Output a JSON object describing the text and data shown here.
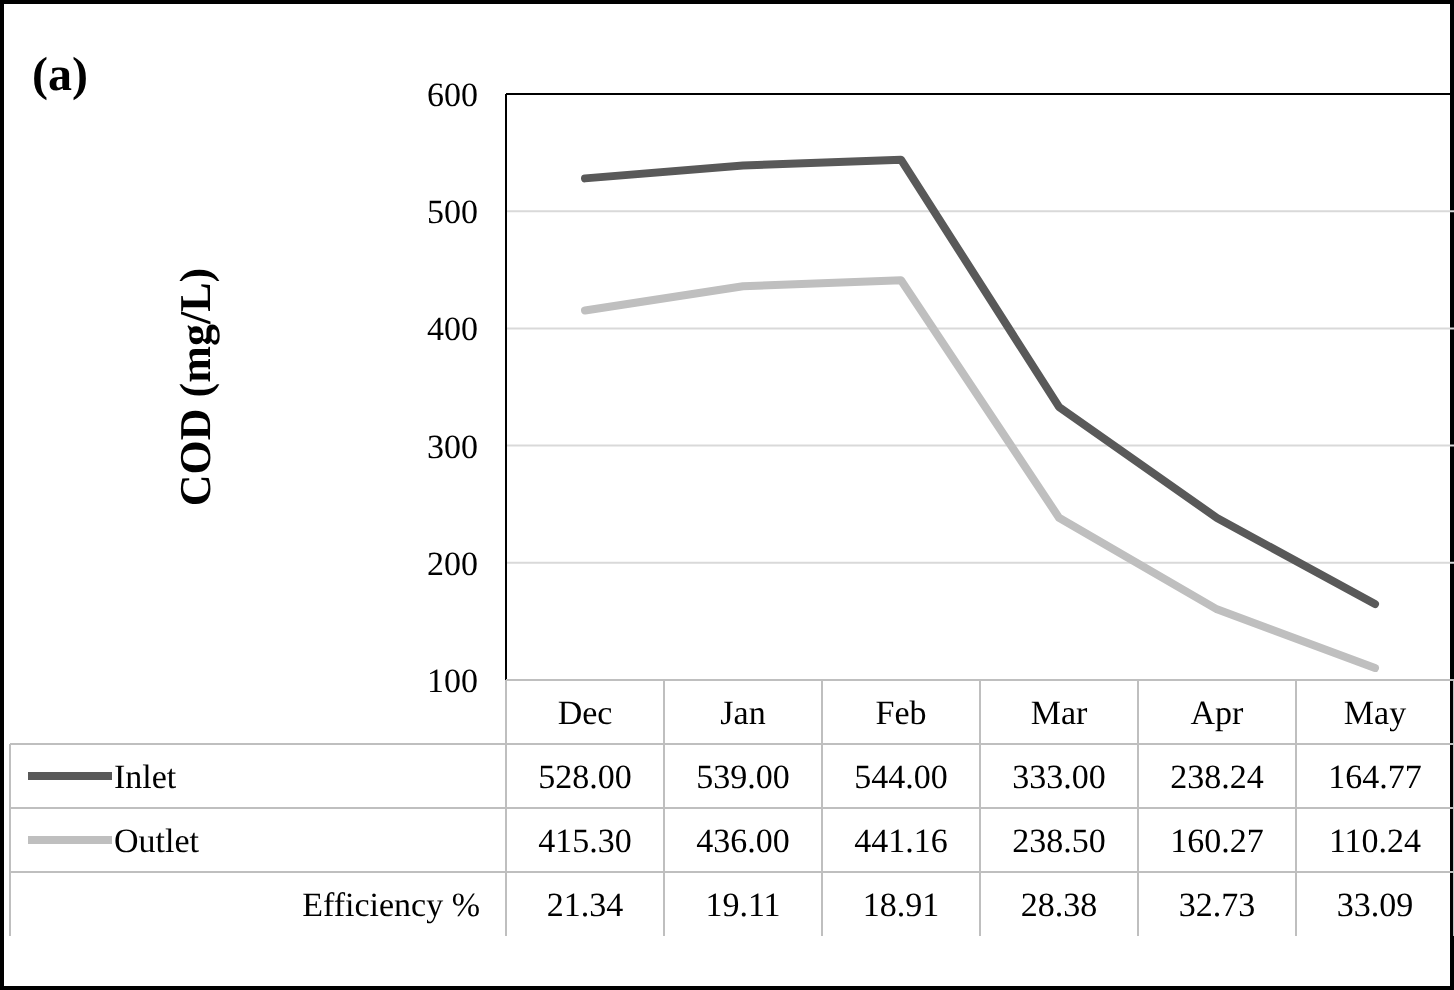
{
  "chart_data": {
    "type": "line",
    "title": "(a)",
    "ylabel": "COD (mg/L)",
    "categories": [
      "Dec",
      "Jan",
      "Feb",
      "Mar",
      "Apr",
      "May"
    ],
    "ylim": [
      100,
      600
    ],
    "yticks": [
      100,
      200,
      300,
      400,
      500,
      600
    ],
    "grid": "y",
    "legend": "bottom",
    "marker": "none",
    "line_style": "solid",
    "series": [
      {
        "name": "Inlet",
        "color": "#595959",
        "values": [
          528,
          539,
          544,
          333,
          238.24,
          164.77
        ],
        "value_labels": [
          "528.00",
          "539.00",
          "544.00",
          "333.00",
          "238.24",
          "164.77"
        ]
      },
      {
        "name": "Outlet",
        "color": "#bfbfbf",
        "values": [
          415.3,
          436,
          441.16,
          238.5,
          160.27,
          110.24
        ],
        "value_labels": [
          "415.30",
          "436.00",
          "441.16",
          "238.50",
          "160.27",
          "110.24"
        ]
      }
    ],
    "annotations": [
      "Efficiency %",
      "21.34",
      "19.11",
      "18.91",
      "28.38",
      "32.73",
      "33.09"
    ]
  }
}
